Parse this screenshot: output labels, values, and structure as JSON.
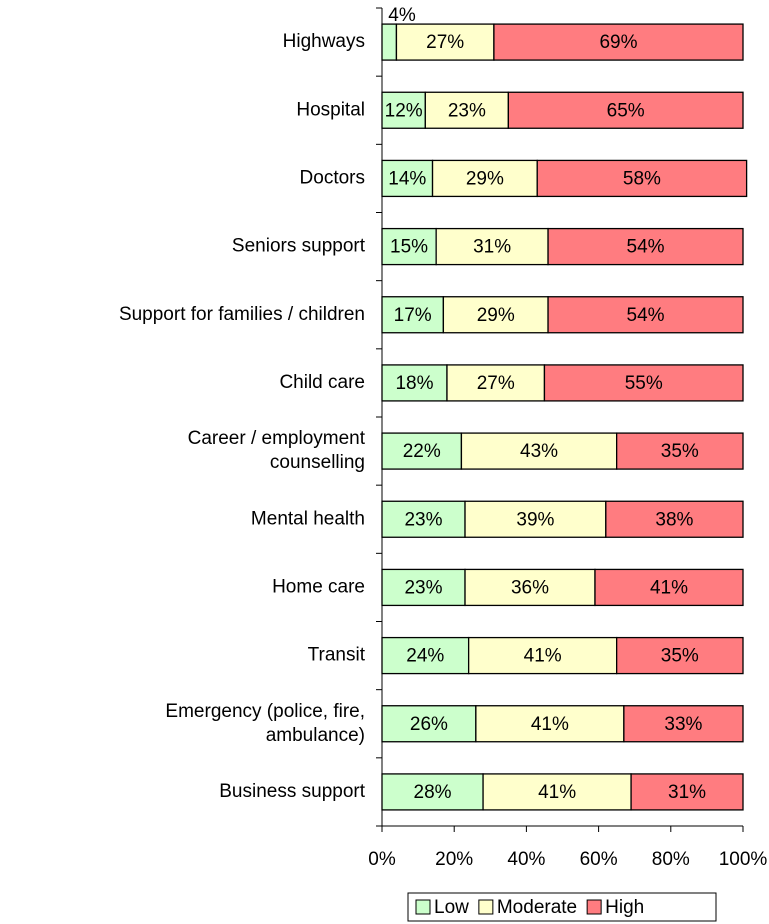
{
  "chart_data": {
    "type": "stacked_bar_horizontal",
    "categories": [
      [
        "Highways"
      ],
      [
        "Hospital"
      ],
      [
        "Doctors"
      ],
      [
        "Seniors support"
      ],
      [
        "Support for families / children"
      ],
      [
        "Child care"
      ],
      [
        "Career / employment",
        "counselling"
      ],
      [
        "Mental health"
      ],
      [
        "Home care"
      ],
      [
        "Transit"
      ],
      [
        "Emergency (police, fire,",
        "ambulance)"
      ],
      [
        "Business support"
      ]
    ],
    "series": [
      {
        "name": "Low",
        "color": "#ccffcc",
        "values": [
          4,
          12,
          14,
          15,
          17,
          18,
          22,
          23,
          23,
          24,
          26,
          28
        ],
        "value_labels": [
          "4%",
          "12%",
          "14%",
          "15%",
          "17%",
          "18%",
          "22%",
          "23%",
          "23%",
          "24%",
          "26%",
          "28%"
        ]
      },
      {
        "name": "Moderate",
        "color": "#ffffcc",
        "values": [
          27,
          23,
          29,
          31,
          29,
          27,
          43,
          39,
          36,
          41,
          41,
          41
        ],
        "value_labels": [
          "27%",
          "23%",
          "29%",
          "31%",
          "29%",
          "27%",
          "43%",
          "39%",
          "36%",
          "41%",
          "41%",
          "41%"
        ]
      },
      {
        "name": "High",
        "color": "#ff7c80",
        "values": [
          69,
          65,
          58,
          54,
          54,
          55,
          35,
          38,
          41,
          35,
          33,
          31
        ],
        "value_labels": [
          "69%",
          "65%",
          "58%",
          "54%",
          "54%",
          "55%",
          "35%",
          "38%",
          "41%",
          "35%",
          "33%",
          "31%"
        ]
      }
    ],
    "xlim": [
      0,
      100
    ],
    "xticks": [
      {
        "value": 0,
        "label": "0%"
      },
      {
        "value": 20,
        "label": "20%"
      },
      {
        "value": 40,
        "label": "40%"
      },
      {
        "value": 60,
        "label": "60%"
      },
      {
        "value": 80,
        "label": "80%"
      },
      {
        "value": 100,
        "label": "100%"
      }
    ],
    "legend": "bottom"
  }
}
